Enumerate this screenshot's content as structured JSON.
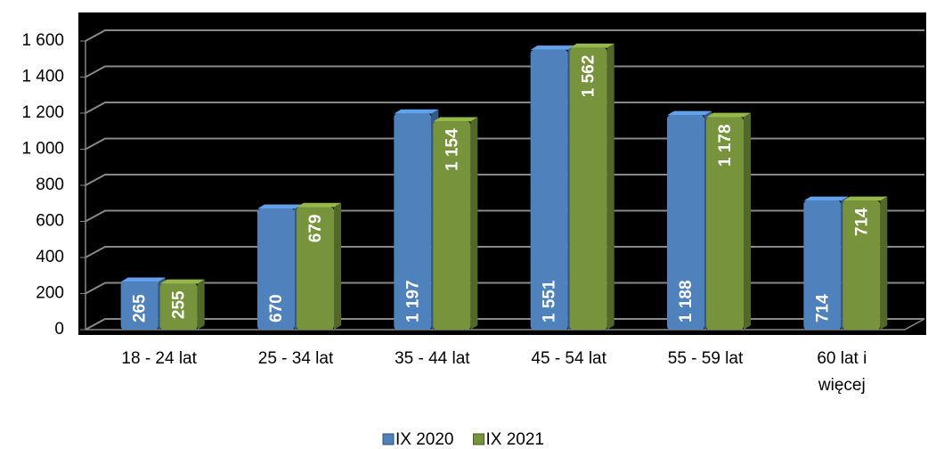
{
  "chart_data": {
    "type": "bar",
    "categories": [
      "18 - 24 lat",
      "25 - 34 lat",
      "35 - 44 lat",
      "45 - 54 lat",
      "55 - 59 lat",
      "60 lat i więcej"
    ],
    "series": [
      {
        "name": "IX 2020",
        "color": "#4f81bd",
        "values": [
          265,
          670,
          1197,
          1551,
          1188,
          714
        ],
        "value_labels": [
          "265",
          "670",
          "1 197",
          "1 551",
          "1 188",
          "714"
        ]
      },
      {
        "name": "IX 2021",
        "color": "#77933c",
        "values": [
          255,
          679,
          1154,
          1562,
          1178,
          714
        ],
        "value_labels": [
          "255",
          "679",
          "1 154",
          "1 562",
          "1 178",
          "714"
        ]
      }
    ],
    "ylim": [
      0,
      1600
    ],
    "yticks": [
      0,
      200,
      400,
      600,
      800,
      {
        "value": 1000,
        "label": "1 000"
      },
      {
        "value": 1200,
        "label": "1 200"
      },
      {
        "value": 1400,
        "label": "1 400"
      },
      {
        "value": 1600,
        "label": "1 600"
      }
    ],
    "grid": true,
    "legend": "bottom"
  }
}
